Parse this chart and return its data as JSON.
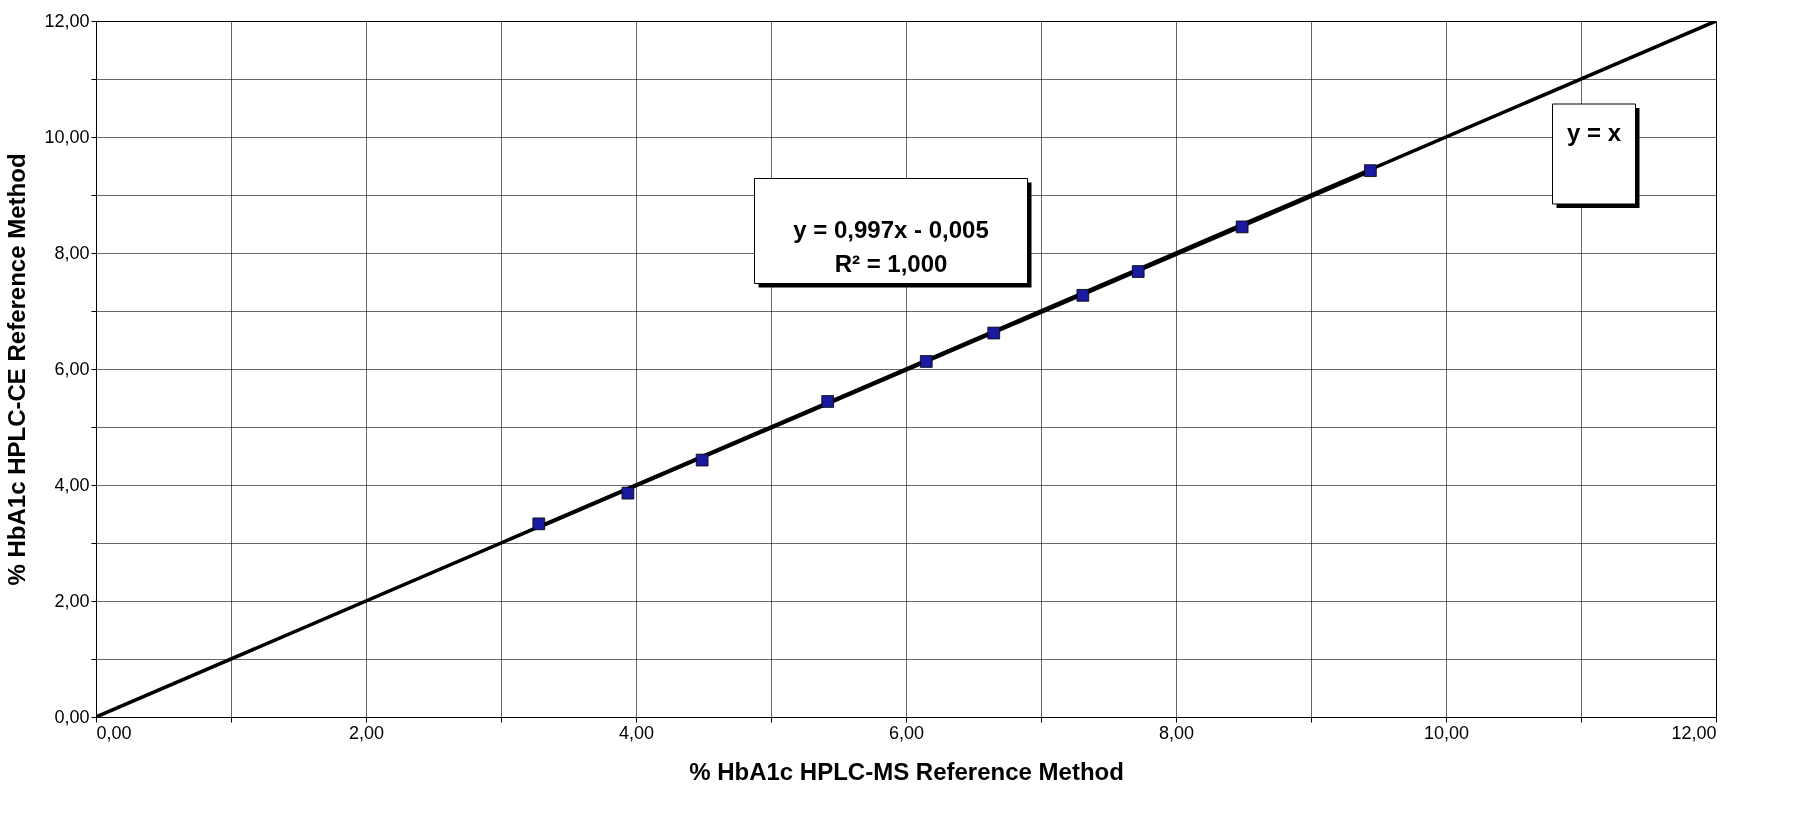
{
  "chart_data": {
    "type": "scatter",
    "xlabel": "% HbA1c HPLC-MS Reference Method",
    "ylabel": "% HbA1c HPLC-CE Reference Method",
    "xlim": [
      0,
      12
    ],
    "ylim": [
      0,
      12
    ],
    "xticks": [
      {
        "value": 0,
        "label": "0,00"
      },
      {
        "value": 1,
        "label": null
      },
      {
        "value": 2,
        "label": "2,00"
      },
      {
        "value": 3,
        "label": null
      },
      {
        "value": 4,
        "label": "4,00"
      },
      {
        "value": 5,
        "label": null
      },
      {
        "value": 6,
        "label": "6,00"
      },
      {
        "value": 7,
        "label": null
      },
      {
        "value": 8,
        "label": "8,00"
      },
      {
        "value": 9,
        "label": null
      },
      {
        "value": 10,
        "label": "10,00"
      },
      {
        "value": 11,
        "label": null
      },
      {
        "value": 12,
        "label": "12,00"
      }
    ],
    "yticks": [
      {
        "value": 0,
        "label": "0,00"
      },
      {
        "value": 1,
        "label": null
      },
      {
        "value": 2,
        "label": "2,00"
      },
      {
        "value": 3,
        "label": null
      },
      {
        "value": 4,
        "label": "4,00"
      },
      {
        "value": 5,
        "label": null
      },
      {
        "value": 6,
        "label": "6,00"
      },
      {
        "value": 7,
        "label": null
      },
      {
        "value": 8,
        "label": "8,00"
      },
      {
        "value": 9,
        "label": null
      },
      {
        "value": 10,
        "label": "10,00"
      },
      {
        "value": 11,
        "label": null
      },
      {
        "value": 12,
        "label": "12,00"
      }
    ],
    "grid": true,
    "marker": "square",
    "series": [
      {
        "type": "line",
        "marker": "none",
        "color": "#000000",
        "x": [
          0,
          12
        ],
        "values": [
          0,
          12
        ]
      },
      {
        "type": "line",
        "marker": "none",
        "color": "#000000",
        "x": [
          3.28,
          9.44
        ],
        "values": [
          3.27,
          9.41
        ]
      },
      {
        "color": "#1a1aa0",
        "x": [
          3.28,
          3.94,
          4.49,
          5.42,
          6.15,
          6.65,
          7.31,
          7.72,
          8.49,
          9.44
        ],
        "values": [
          3.33,
          3.86,
          4.43,
          5.44,
          6.13,
          6.62,
          7.27,
          7.68,
          8.45,
          9.42
        ]
      }
    ],
    "annotations": [
      "y = 0,997x - 0,005\nR² = 1,000",
      "y = x"
    ]
  }
}
